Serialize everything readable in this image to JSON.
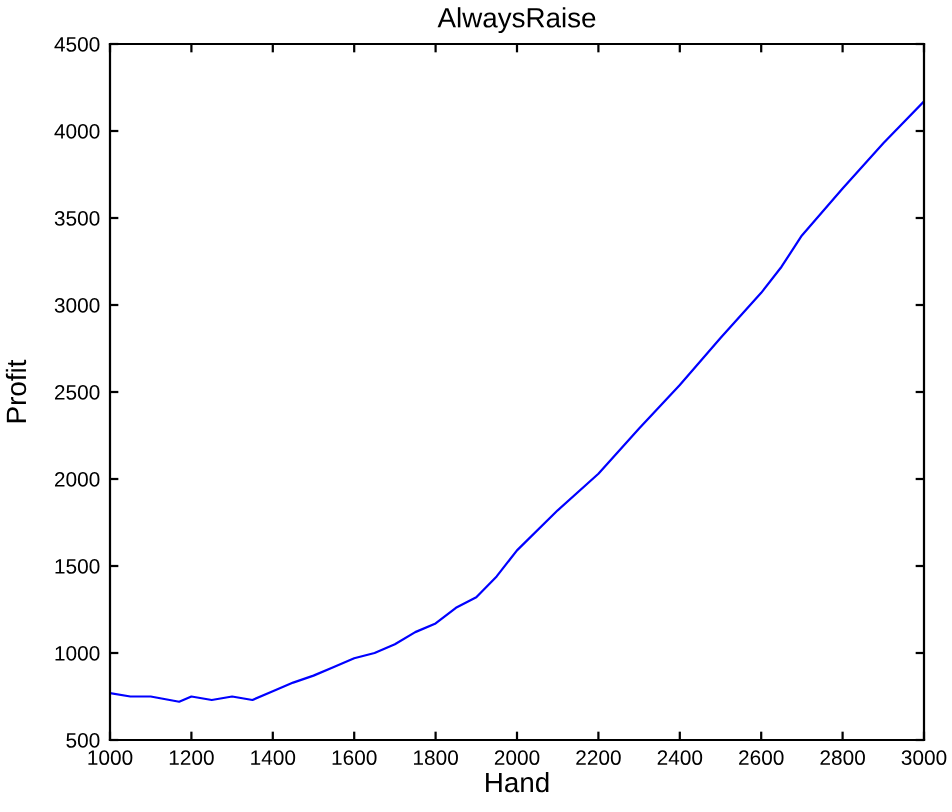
{
  "chart_data": {
    "type": "line",
    "title": "AlwaysRaise",
    "xlabel": "Hand",
    "ylabel": "Profit",
    "series": [
      {
        "color": "#0000ff",
        "x": [
          1000,
          1050,
          1100,
          1170,
          1200,
          1250,
          1300,
          1350,
          1400,
          1450,
          1500,
          1550,
          1600,
          1650,
          1700,
          1750,
          1800,
          1850,
          1900,
          1950,
          2000,
          2100,
          2200,
          2300,
          2400,
          2500,
          2600,
          2650,
          2700,
          2800,
          2900,
          3000
        ],
        "values": [
          770,
          750,
          750,
          720,
          750,
          730,
          750,
          730,
          780,
          830,
          870,
          920,
          970,
          1000,
          1050,
          1120,
          1170,
          1260,
          1320,
          1440,
          1590,
          1820,
          2030,
          2290,
          2540,
          2810,
          3070,
          3220,
          3400,
          3670,
          3930,
          4170
        ]
      }
    ],
    "xlim": [
      1000,
      3000
    ],
    "xticks": [
      1000,
      1200,
      1400,
      1600,
      1800,
      2000,
      2200,
      2400,
      2600,
      2800,
      3000
    ],
    "ylim": [
      500,
      4500
    ],
    "yticks": [
      500,
      1000,
      1500,
      2000,
      2500,
      3000,
      3500,
      4000,
      4500
    ],
    "grid": false,
    "legend": false,
    "marker": "none",
    "line_style": "solid"
  }
}
